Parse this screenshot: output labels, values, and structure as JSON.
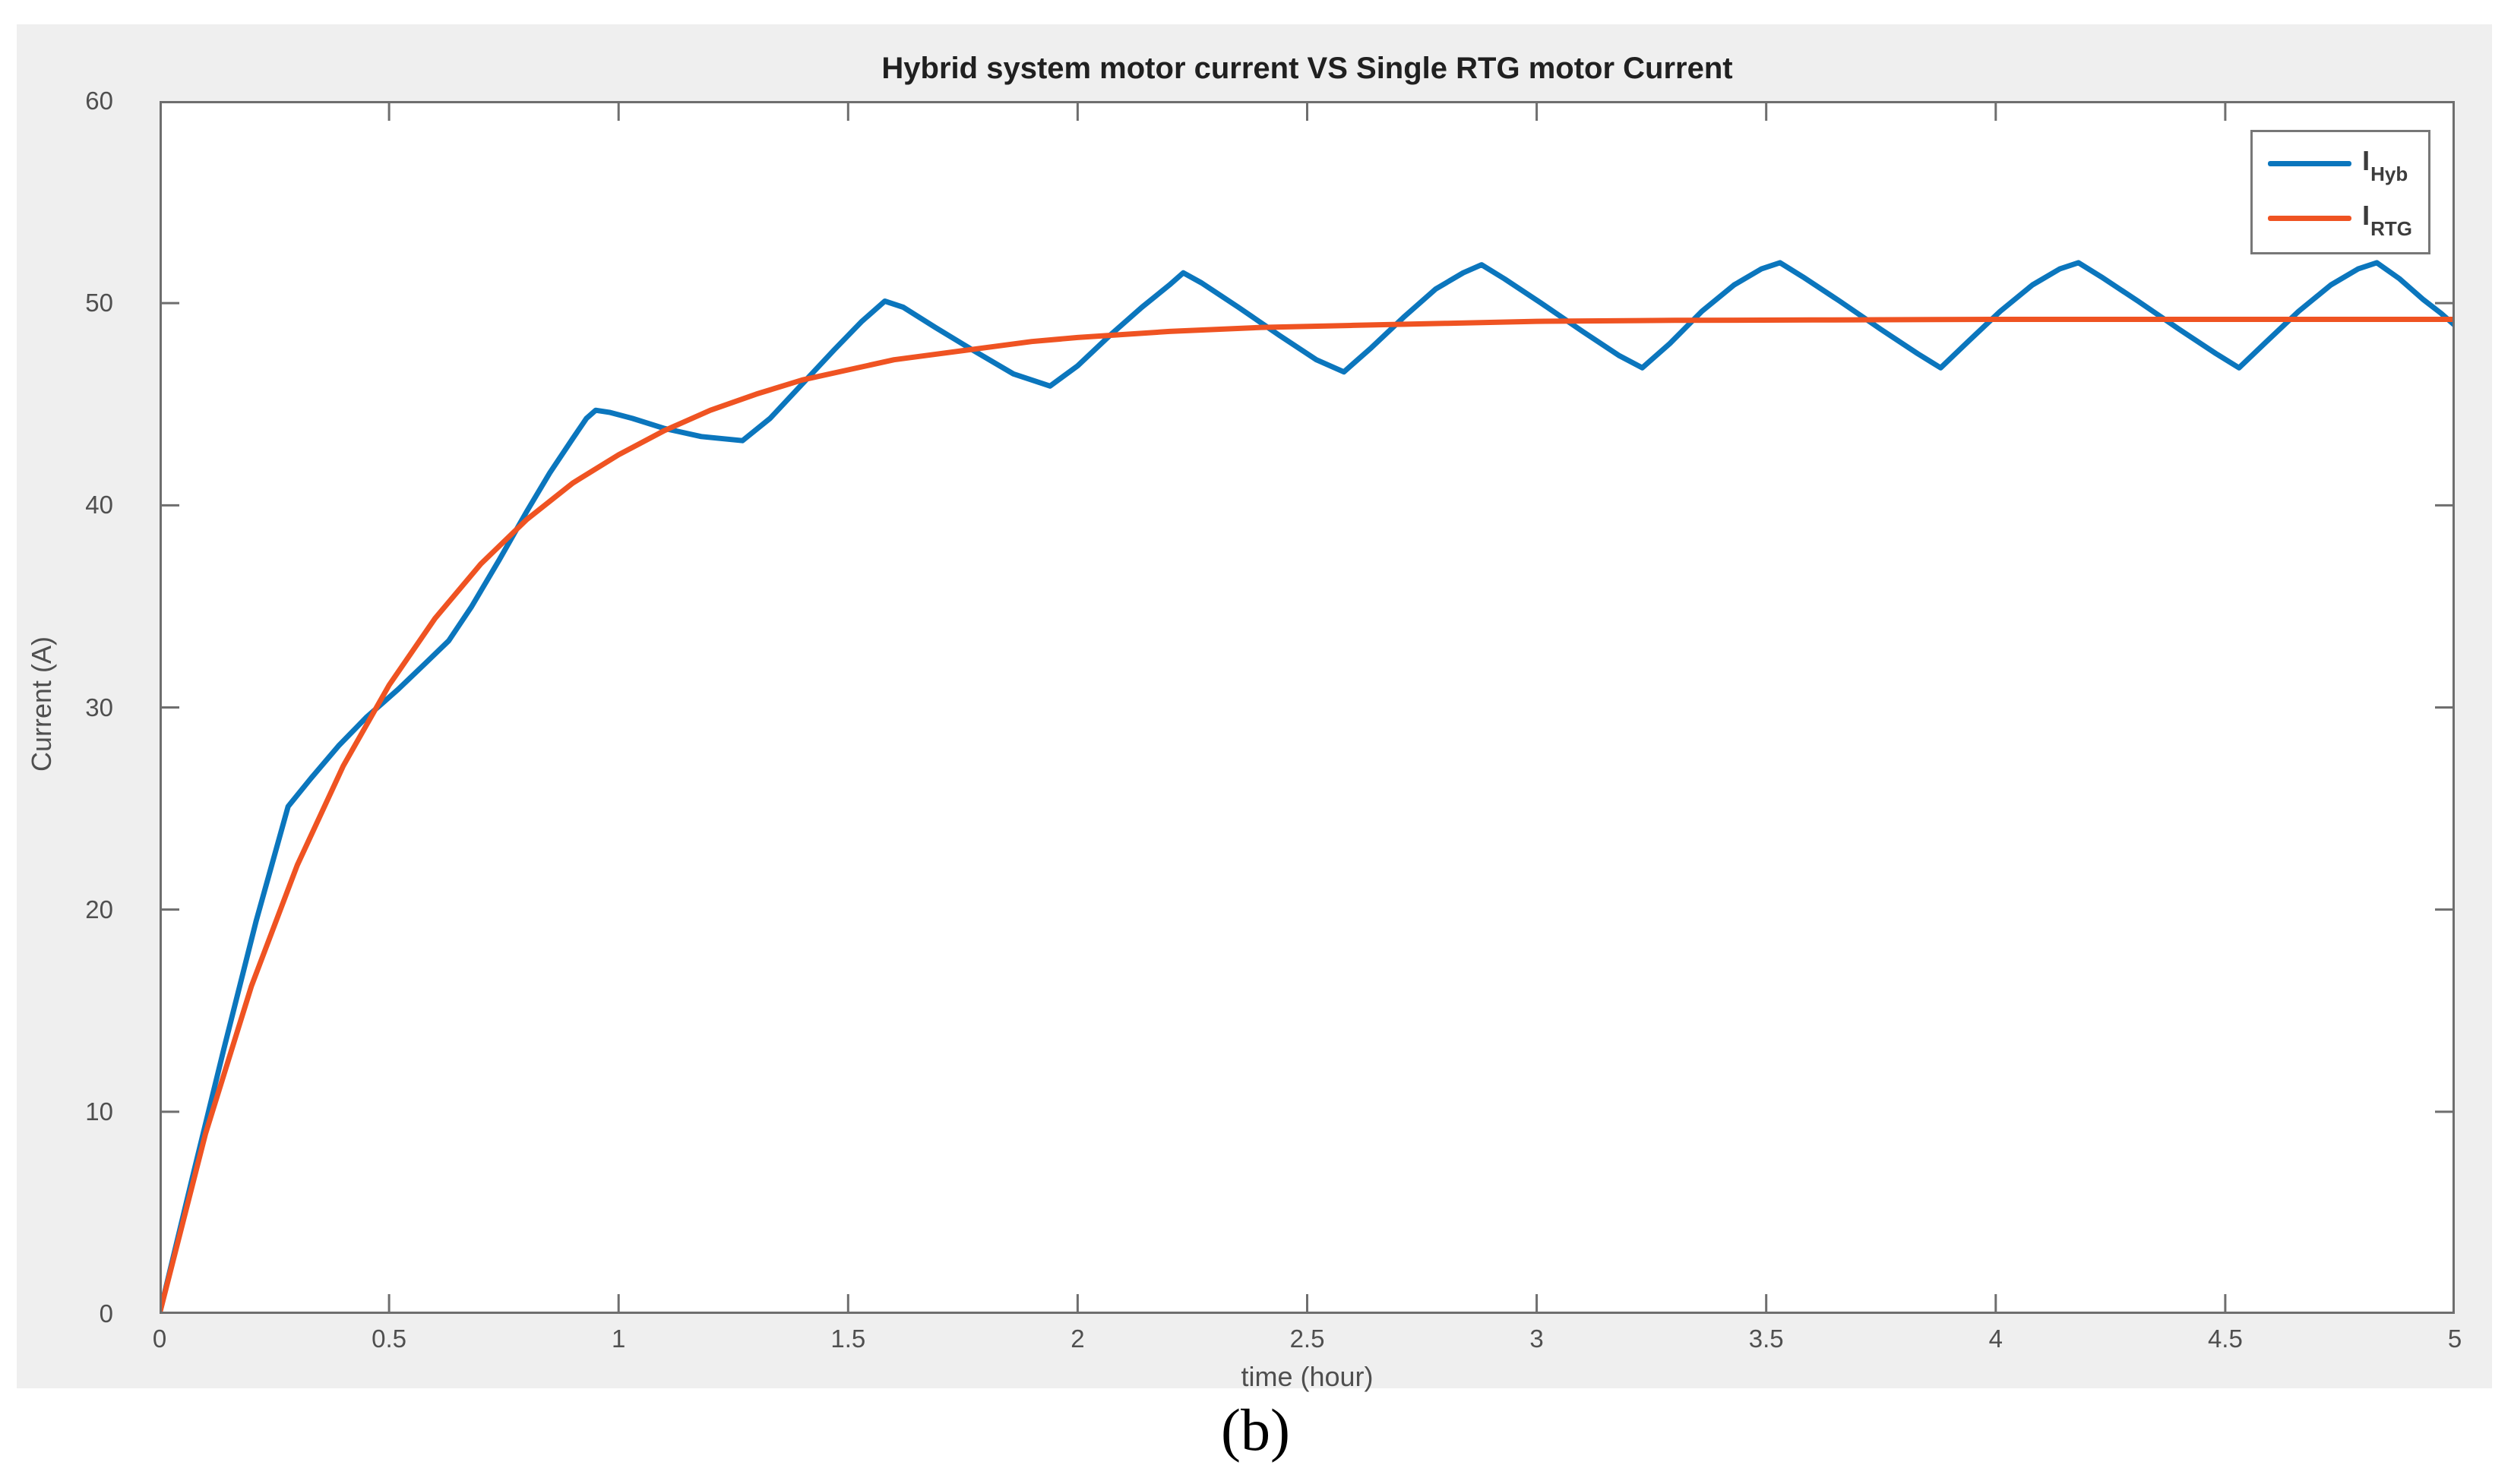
{
  "figure": {
    "background": "#efefef",
    "plot_background": "#ffffff",
    "frame_color": "#6e6e6e",
    "tick_text_color": "#4f4f4f",
    "caption": "(b)"
  },
  "legend": {
    "items": [
      {
        "main": "I",
        "sub": "Hyb",
        "color": "#0b76bd"
      },
      {
        "main": "I",
        "sub": "RTG",
        "color": "#ef5322"
      }
    ]
  },
  "chart_data": {
    "type": "line",
    "title": "Hybrid system motor current VS Single RTG motor Current",
    "xlabel": "time (hour)",
    "ylabel": "Current (A)",
    "xlim": [
      0,
      5
    ],
    "ylim": [
      0,
      60
    ],
    "grid": false,
    "legend_position": "top-right",
    "x_ticks": [
      0,
      0.5,
      1,
      1.5,
      2,
      2.5,
      3,
      3.5,
      4,
      4.5,
      5
    ],
    "x_tick_labels": [
      "0",
      "0.5",
      "1",
      "1.5",
      "2",
      "2.5",
      "3",
      "3.5",
      "4",
      "4.5",
      "5"
    ],
    "y_ticks": [
      0,
      10,
      20,
      30,
      40,
      50,
      60
    ],
    "y_tick_labels": [
      "0",
      "10",
      "20",
      "30",
      "40",
      "50",
      "60"
    ],
    "series": [
      {
        "name": "I_Hyb",
        "color": "#0b76bd",
        "points": [
          [
            0,
            0
          ],
          [
            0.07,
            6.6
          ],
          [
            0.14,
            13.1
          ],
          [
            0.21,
            19.4
          ],
          [
            0.28,
            25.1
          ],
          [
            0.33,
            26.5
          ],
          [
            0.39,
            28.1
          ],
          [
            0.45,
            29.5
          ],
          [
            0.52,
            30.9
          ],
          [
            0.58,
            32.2
          ],
          [
            0.63,
            33.3
          ],
          [
            0.68,
            35.0
          ],
          [
            0.74,
            37.3
          ],
          [
            0.8,
            39.7
          ],
          [
            0.85,
            41.6
          ],
          [
            0.9,
            43.3
          ],
          [
            0.93,
            44.3
          ],
          [
            0.95,
            44.7
          ],
          [
            0.98,
            44.6
          ],
          [
            1.03,
            44.3
          ],
          [
            1.1,
            43.8
          ],
          [
            1.18,
            43.4
          ],
          [
            1.27,
            43.2
          ],
          [
            1.33,
            44.3
          ],
          [
            1.4,
            46.0
          ],
          [
            1.47,
            47.7
          ],
          [
            1.53,
            49.1
          ],
          [
            1.58,
            50.1
          ],
          [
            1.62,
            49.8
          ],
          [
            1.69,
            48.8
          ],
          [
            1.77,
            47.7
          ],
          [
            1.86,
            46.5
          ],
          [
            1.94,
            45.9
          ],
          [
            2.0,
            46.9
          ],
          [
            2.07,
            48.4
          ],
          [
            2.14,
            49.8
          ],
          [
            2.2,
            50.9
          ],
          [
            2.23,
            51.5
          ],
          [
            2.27,
            51.0
          ],
          [
            2.35,
            49.8
          ],
          [
            2.44,
            48.4
          ],
          [
            2.52,
            47.2
          ],
          [
            2.58,
            46.6
          ],
          [
            2.64,
            47.8
          ],
          [
            2.71,
            49.3
          ],
          [
            2.78,
            50.7
          ],
          [
            2.84,
            51.5
          ],
          [
            2.88,
            51.9
          ],
          [
            2.93,
            51.2
          ],
          [
            3.01,
            50.0
          ],
          [
            3.1,
            48.6
          ],
          [
            3.18,
            47.4
          ],
          [
            3.23,
            46.8
          ],
          [
            3.29,
            48.0
          ],
          [
            3.36,
            49.6
          ],
          [
            3.43,
            50.9
          ],
          [
            3.49,
            51.7
          ],
          [
            3.53,
            52.0
          ],
          [
            3.58,
            51.3
          ],
          [
            3.66,
            50.1
          ],
          [
            3.75,
            48.7
          ],
          [
            3.83,
            47.5
          ],
          [
            3.88,
            46.8
          ],
          [
            3.94,
            48.1
          ],
          [
            4.01,
            49.6
          ],
          [
            4.08,
            50.9
          ],
          [
            4.14,
            51.7
          ],
          [
            4.18,
            52.0
          ],
          [
            4.23,
            51.3
          ],
          [
            4.31,
            50.1
          ],
          [
            4.4,
            48.7
          ],
          [
            4.48,
            47.5
          ],
          [
            4.53,
            46.8
          ],
          [
            4.59,
            48.1
          ],
          [
            4.66,
            49.6
          ],
          [
            4.73,
            50.9
          ],
          [
            4.79,
            51.7
          ],
          [
            4.83,
            52.0
          ],
          [
            4.88,
            51.2
          ],
          [
            4.93,
            50.2
          ],
          [
            4.97,
            49.5
          ],
          [
            5.0,
            48.9
          ]
        ]
      },
      {
        "name": "I_RTG",
        "color": "#ef5322",
        "points": [
          [
            0,
            0
          ],
          [
            0.1,
            8.9
          ],
          [
            0.2,
            16.2
          ],
          [
            0.3,
            22.2
          ],
          [
            0.4,
            27.1
          ],
          [
            0.5,
            31.1
          ],
          [
            0.6,
            34.4
          ],
          [
            0.7,
            37.1
          ],
          [
            0.8,
            39.3
          ],
          [
            0.9,
            41.1
          ],
          [
            1.0,
            42.5
          ],
          [
            1.1,
            43.7
          ],
          [
            1.2,
            44.7
          ],
          [
            1.3,
            45.5
          ],
          [
            1.4,
            46.2
          ],
          [
            1.5,
            46.7
          ],
          [
            1.6,
            47.2
          ],
          [
            1.7,
            47.5
          ],
          [
            1.8,
            47.8
          ],
          [
            1.9,
            48.1
          ],
          [
            2.0,
            48.3
          ],
          [
            2.2,
            48.6
          ],
          [
            2.4,
            48.8
          ],
          [
            2.6,
            48.9
          ],
          [
            2.8,
            49.0
          ],
          [
            3.0,
            49.1
          ],
          [
            3.3,
            49.15
          ],
          [
            3.6,
            49.17
          ],
          [
            4.0,
            49.2
          ],
          [
            4.5,
            49.2
          ],
          [
            5.0,
            49.2
          ]
        ]
      }
    ]
  }
}
